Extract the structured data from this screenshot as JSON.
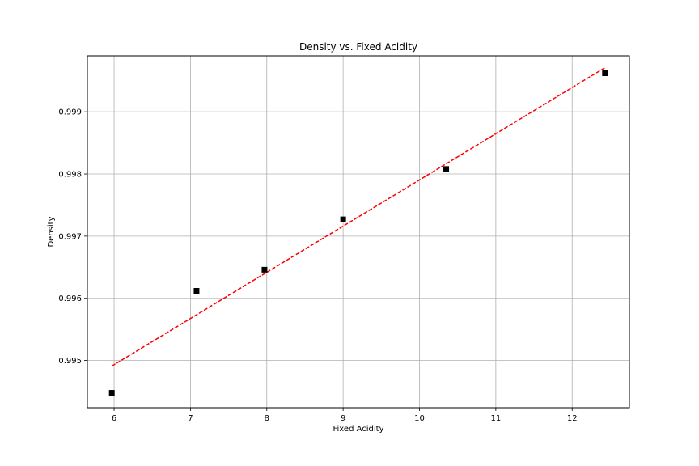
{
  "chart_data": {
    "type": "scatter",
    "title": "Density vs. Fixed Acidity",
    "xlabel": "Fixed Acidity",
    "ylabel": "Density",
    "xlim": [
      5.65,
      12.75
    ],
    "ylim": [
      0.99424,
      0.9999
    ],
    "xticks": [
      6,
      7,
      8,
      9,
      10,
      11,
      12
    ],
    "yticks": [
      0.995,
      0.996,
      0.997,
      0.998,
      0.999
    ],
    "grid": true,
    "legend": "none",
    "series": [
      {
        "type": "scatter",
        "marker": "square",
        "color": "#000000",
        "x": [
          5.97,
          7.08,
          7.97,
          9.0,
          10.35,
          12.43
        ],
        "y": [
          0.99448,
          0.99612,
          0.99646,
          0.99727,
          0.99808,
          0.99962
        ]
      },
      {
        "type": "line",
        "style": "dashed",
        "color": "#ff0000",
        "x": [
          5.97,
          12.43
        ],
        "y": [
          0.99491,
          0.99971
        ]
      }
    ]
  }
}
